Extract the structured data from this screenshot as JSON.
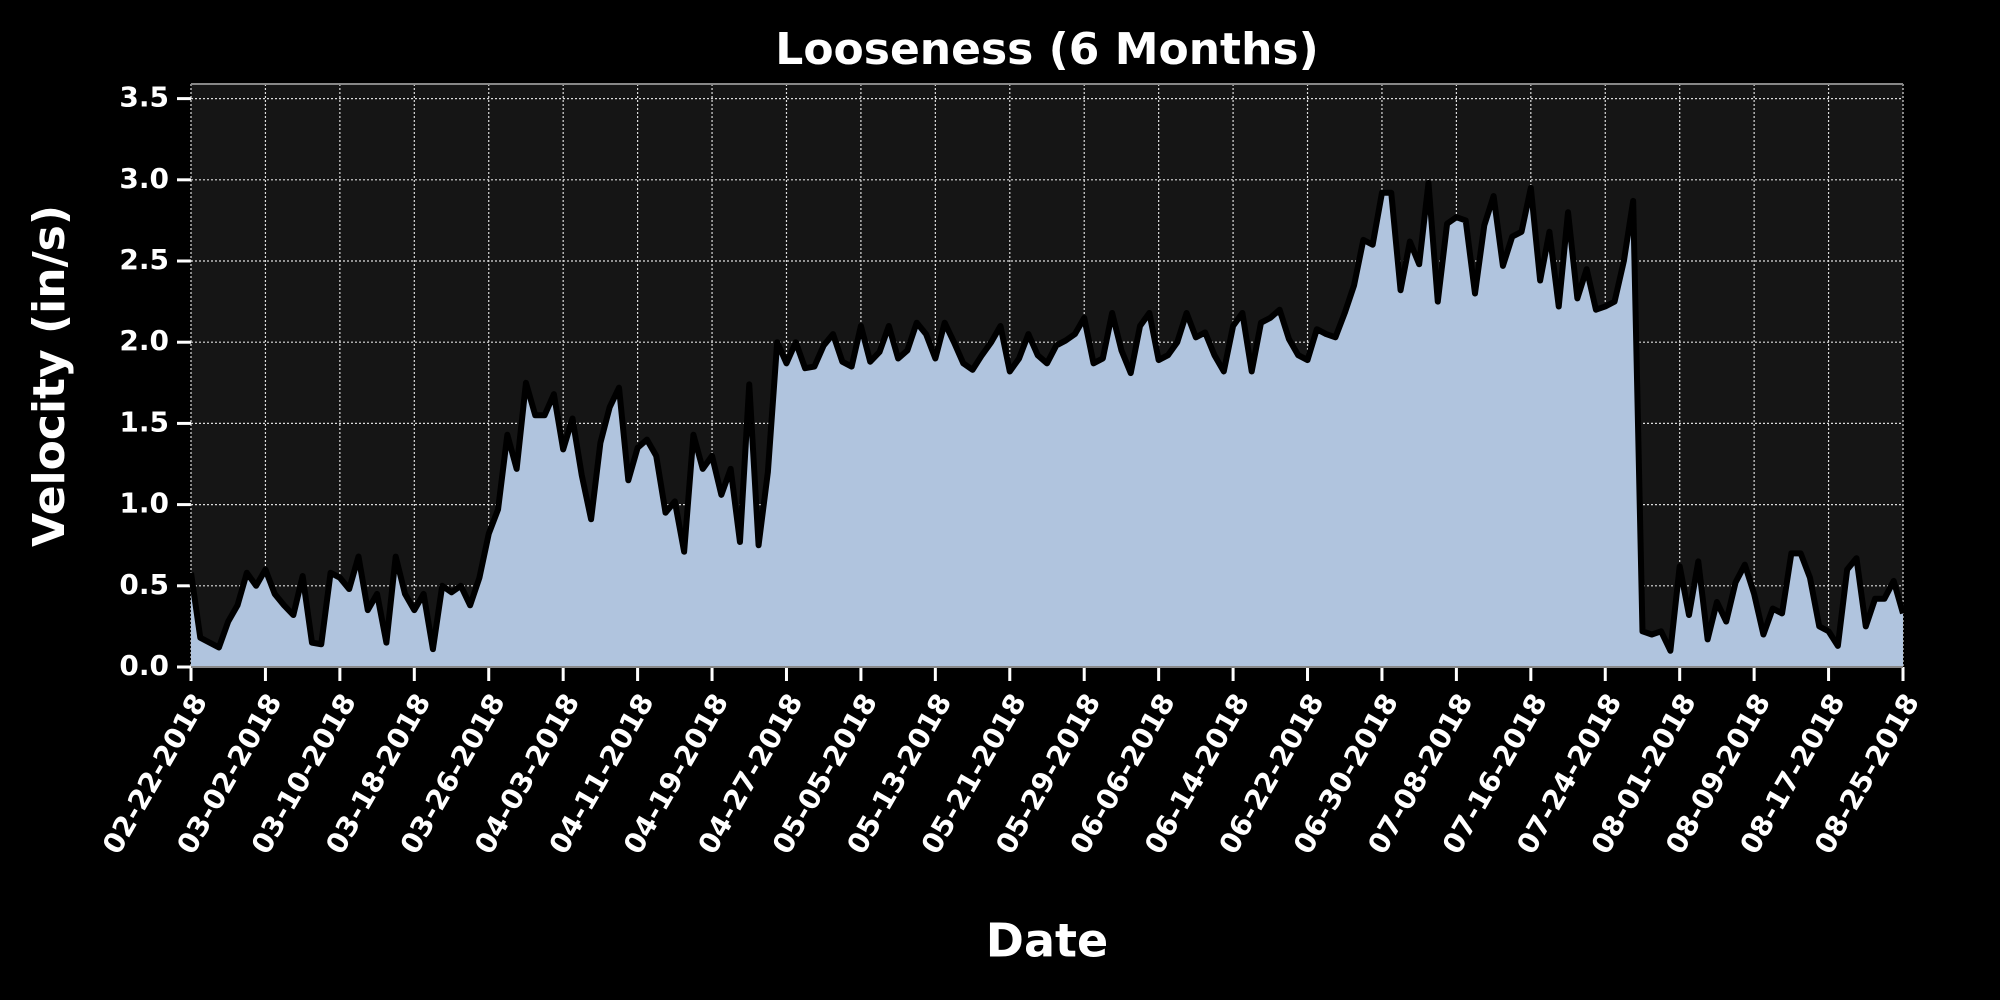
{
  "chart_data": {
    "type": "area",
    "title": "Looseness (6 Months)",
    "xlabel": "Date",
    "ylabel": "Velocity (in/s)",
    "x": [
      "02-22-2018",
      "02-23-2018",
      "02-24-2018",
      "02-25-2018",
      "02-26-2018",
      "02-27-2018",
      "02-28-2018",
      "03-01-2018",
      "03-02-2018",
      "03-03-2018",
      "03-04-2018",
      "03-05-2018",
      "03-06-2018",
      "03-07-2018",
      "03-08-2018",
      "03-09-2018",
      "03-10-2018",
      "03-11-2018",
      "03-12-2018",
      "03-13-2018",
      "03-14-2018",
      "03-15-2018",
      "03-16-2018",
      "03-17-2018",
      "03-18-2018",
      "03-19-2018",
      "03-20-2018",
      "03-21-2018",
      "03-22-2018",
      "03-23-2018",
      "03-24-2018",
      "03-25-2018",
      "03-26-2018",
      "03-27-2018",
      "03-28-2018",
      "03-29-2018",
      "03-30-2018",
      "03-31-2018",
      "04-01-2018",
      "04-02-2018",
      "04-03-2018",
      "04-04-2018",
      "04-05-2018",
      "04-06-2018",
      "04-07-2018",
      "04-08-2018",
      "04-09-2018",
      "04-10-2018",
      "04-11-2018",
      "04-12-2018",
      "04-13-2018",
      "04-14-2018",
      "04-15-2018",
      "04-16-2018",
      "04-17-2018",
      "04-18-2018",
      "04-19-2018",
      "04-20-2018",
      "04-21-2018",
      "04-22-2018",
      "04-23-2018",
      "04-24-2018",
      "04-25-2018",
      "04-26-2018",
      "04-27-2018",
      "04-28-2018",
      "04-29-2018",
      "04-30-2018",
      "05-01-2018",
      "05-02-2018",
      "05-03-2018",
      "05-04-2018",
      "05-05-2018",
      "05-06-2018",
      "05-07-2018",
      "05-08-2018",
      "05-09-2018",
      "05-10-2018",
      "05-11-2018",
      "05-12-2018",
      "05-13-2018",
      "05-14-2018",
      "05-15-2018",
      "05-16-2018",
      "05-17-2018",
      "05-18-2018",
      "05-19-2018",
      "05-20-2018",
      "05-21-2018",
      "05-22-2018",
      "05-23-2018",
      "05-24-2018",
      "05-25-2018",
      "05-26-2018",
      "05-27-2018",
      "05-28-2018",
      "05-29-2018",
      "05-30-2018",
      "05-31-2018",
      "06-01-2018",
      "06-02-2018",
      "06-03-2018",
      "06-04-2018",
      "06-05-2018",
      "06-06-2018",
      "06-07-2018",
      "06-08-2018",
      "06-09-2018",
      "06-10-2018",
      "06-11-2018",
      "06-12-2018",
      "06-13-2018",
      "06-14-2018",
      "06-15-2018",
      "06-16-2018",
      "06-17-2018",
      "06-18-2018",
      "06-19-2018",
      "06-20-2018",
      "06-21-2018",
      "06-22-2018",
      "06-23-2018",
      "06-24-2018",
      "06-25-2018",
      "06-26-2018",
      "06-27-2018",
      "06-28-2018",
      "06-29-2018",
      "06-30-2018",
      "07-01-2018",
      "07-02-2018",
      "07-03-2018",
      "07-04-2018",
      "07-05-2018",
      "07-06-2018",
      "07-07-2018",
      "07-08-2018",
      "07-09-2018",
      "07-10-2018",
      "07-11-2018",
      "07-12-2018",
      "07-13-2018",
      "07-14-2018",
      "07-15-2018",
      "07-16-2018",
      "07-17-2018",
      "07-18-2018",
      "07-19-2018",
      "07-20-2018",
      "07-21-2018",
      "07-22-2018",
      "07-23-2018",
      "07-24-2018",
      "07-25-2018",
      "07-26-2018",
      "07-27-2018",
      "07-28-2018",
      "07-29-2018",
      "07-30-2018",
      "07-31-2018",
      "08-01-2018",
      "08-02-2018",
      "08-03-2018",
      "08-04-2018",
      "08-05-2018",
      "08-06-2018",
      "08-07-2018",
      "08-08-2018",
      "08-09-2018",
      "08-10-2018",
      "08-11-2018",
      "08-12-2018",
      "08-13-2018",
      "08-14-2018",
      "08-15-2018",
      "08-16-2018",
      "08-17-2018",
      "08-18-2018",
      "08-19-2018",
      "08-20-2018",
      "08-21-2018",
      "08-22-2018",
      "08-23-2018",
      "08-24-2018",
      "08-25-2018"
    ],
    "values": [
      0.58,
      0.18,
      0.15,
      0.12,
      0.28,
      0.38,
      0.58,
      0.5,
      0.6,
      0.45,
      0.38,
      0.32,
      0.56,
      0.15,
      0.14,
      0.58,
      0.55,
      0.48,
      0.68,
      0.35,
      0.45,
      0.15,
      0.68,
      0.45,
      0.35,
      0.45,
      0.11,
      0.5,
      0.46,
      0.5,
      0.38,
      0.55,
      0.82,
      0.97,
      1.43,
      1.22,
      1.75,
      1.55,
      1.55,
      1.68,
      1.34,
      1.53,
      1.18,
      0.91,
      1.38,
      1.6,
      1.72,
      1.15,
      1.35,
      1.4,
      1.3,
      0.95,
      1.02,
      0.71,
      1.43,
      1.22,
      1.3,
      1.06,
      1.22,
      0.77,
      1.74,
      0.75,
      1.2,
      2.0,
      1.87,
      2.0,
      1.84,
      1.85,
      1.98,
      2.05,
      1.88,
      1.85,
      2.1,
      1.88,
      1.94,
      2.1,
      1.9,
      1.95,
      2.12,
      2.05,
      1.9,
      2.12,
      2.0,
      1.87,
      1.83,
      1.92,
      2.0,
      2.1,
      1.82,
      1.9,
      2.05,
      1.92,
      1.87,
      1.98,
      2.01,
      2.05,
      2.15,
      1.87,
      1.9,
      2.18,
      1.95,
      1.81,
      2.1,
      2.18,
      1.89,
      1.92,
      2.0,
      2.18,
      2.03,
      2.06,
      1.92,
      1.82,
      2.1,
      2.18,
      1.82,
      2.12,
      2.15,
      2.2,
      2.02,
      1.92,
      1.89,
      2.08,
      2.05,
      2.03,
      2.18,
      2.35,
      2.63,
      2.6,
      2.92,
      2.92,
      2.32,
      2.62,
      2.48,
      2.98,
      2.25,
      2.73,
      2.77,
      2.75,
      2.3,
      2.72,
      2.9,
      2.47,
      2.65,
      2.68,
      2.95,
      2.38,
      2.68,
      2.22,
      2.8,
      2.27,
      2.45,
      2.2,
      2.22,
      2.25,
      2.5,
      2.87,
      0.22,
      0.2,
      0.22,
      0.1,
      0.62,
      0.32,
      0.65,
      0.17,
      0.4,
      0.28,
      0.52,
      0.63,
      0.45,
      0.2,
      0.36,
      0.33,
      0.7,
      0.7,
      0.55,
      0.25,
      0.22,
      0.13,
      0.6,
      0.67,
      0.25,
      0.42,
      0.42,
      0.53,
      0.33
    ],
    "color": "#b0c4de",
    "line_color": "#000000",
    "xlim": [
      "02-22-2018",
      "08-25-2018"
    ],
    "xticks": [
      "02-22-2018",
      "03-02-2018",
      "03-10-2018",
      "03-18-2018",
      "03-26-2018",
      "04-03-2018",
      "04-11-2018",
      "04-19-2018",
      "04-27-2018",
      "05-05-2018",
      "05-13-2018",
      "05-21-2018",
      "05-29-2018",
      "06-06-2018",
      "06-14-2018",
      "06-22-2018",
      "06-30-2018",
      "07-08-2018",
      "07-16-2018",
      "07-24-2018",
      "08-01-2018",
      "08-09-2018",
      "08-17-2018",
      "08-25-2018"
    ],
    "ylim": [
      0,
      3.59
    ],
    "yticks": [
      {
        "value": 0,
        "label": "0.0"
      },
      0.5,
      {
        "value": 1,
        "label": "1.0"
      },
      1.5,
      {
        "value": 2,
        "label": "2.0"
      },
      2.5,
      {
        "value": 3,
        "label": "3.0"
      },
      3.5
    ],
    "grid": true
  }
}
